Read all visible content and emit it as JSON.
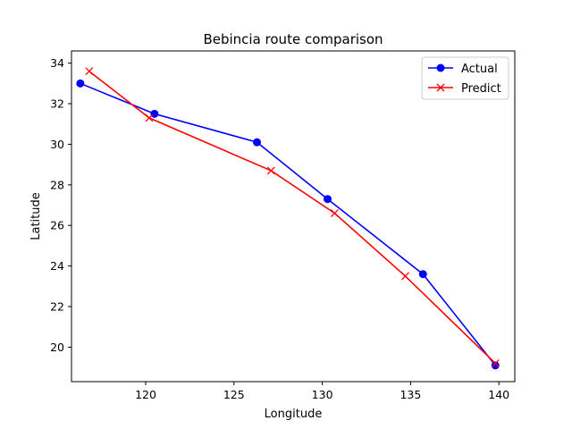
{
  "chart_data": {
    "type": "line",
    "title": "Bebincia route comparison",
    "xlabel": "Longitude",
    "ylabel": "Latitude",
    "xlim": [
      115.8,
      140.9
    ],
    "ylim": [
      18.3,
      34.6
    ],
    "xticks": [
      120,
      125,
      130,
      135,
      140
    ],
    "yticks": [
      20,
      22,
      24,
      26,
      28,
      30,
      32,
      34
    ],
    "grid": false,
    "legend_position": "top-right",
    "series": [
      {
        "name": "Actual",
        "color": "#0000ff",
        "marker": "circle",
        "x": [
          116.3,
          120.5,
          126.3,
          130.3,
          135.7,
          139.8
        ],
        "y": [
          33.0,
          31.5,
          30.1,
          27.3,
          23.6,
          19.1
        ]
      },
      {
        "name": "Predict",
        "color": "#ff0000",
        "marker": "x",
        "x": [
          116.8,
          120.2,
          127.1,
          130.7,
          134.7,
          139.8
        ],
        "y": [
          33.6,
          31.3,
          28.7,
          26.6,
          23.5,
          19.2
        ]
      }
    ]
  }
}
